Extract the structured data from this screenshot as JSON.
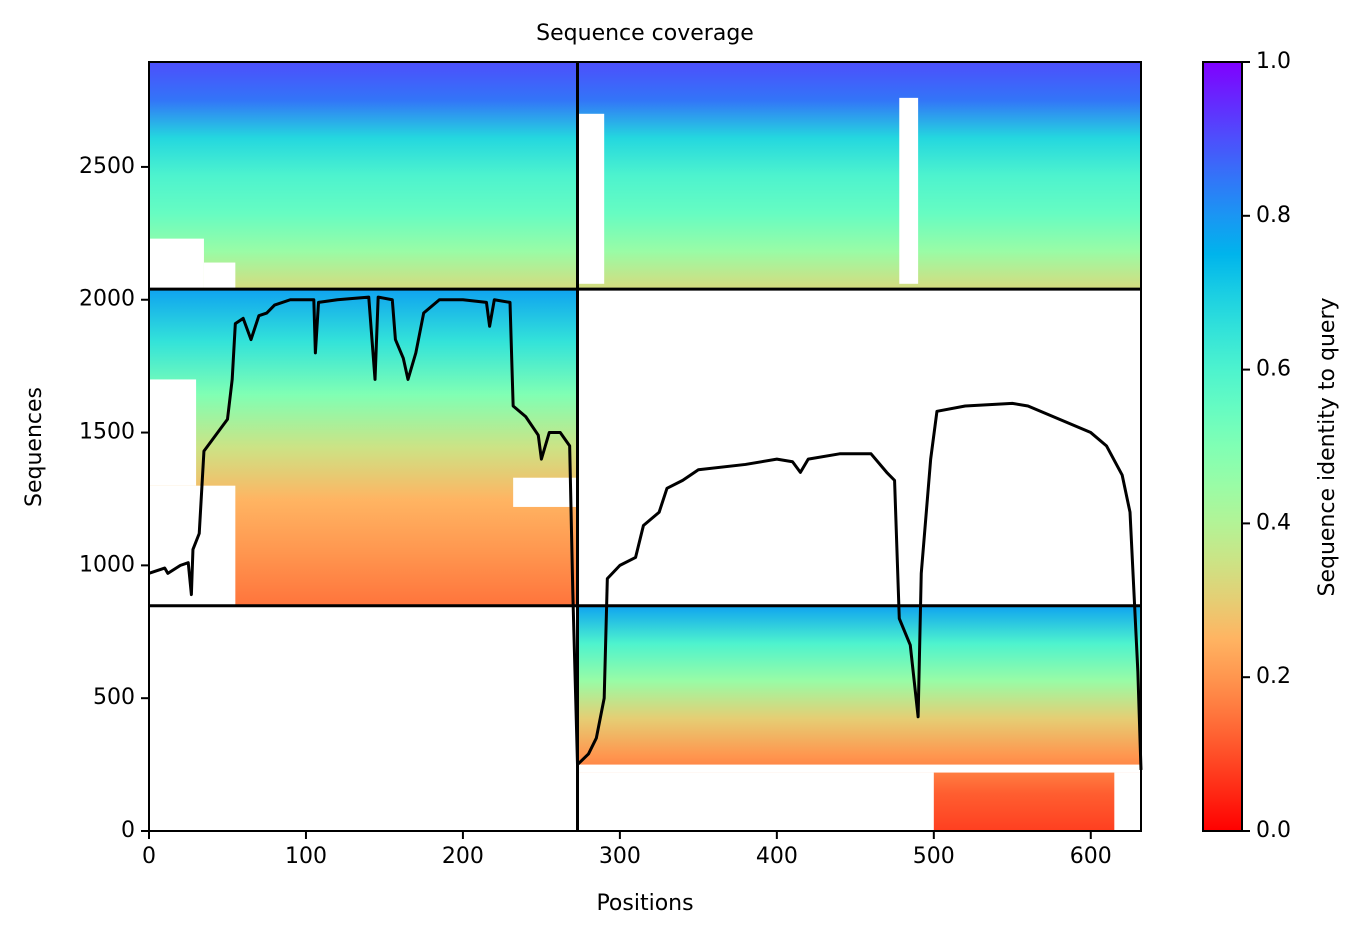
{
  "chart_data": {
    "type": "coverage",
    "title": "Sequence coverage",
    "xlabel": "Positions",
    "ylabel": "Sequences",
    "colorbar_label": "Sequence identity to query",
    "colormap": "rainbow_r",
    "xlim": [
      0,
      632
    ],
    "ylim": [
      0,
      2895
    ],
    "xticks": [
      0,
      100,
      200,
      300,
      400,
      500,
      600
    ],
    "yticks": [
      0,
      500,
      1000,
      1500,
      2000,
      2500
    ],
    "clim": [
      0,
      1
    ],
    "cticks": [
      0.0,
      0.2,
      0.4,
      0.6,
      0.8,
      1.0
    ],
    "blocks": [
      {
        "x": [
          0,
          632
        ],
        "y": [
          2040,
          2895
        ],
        "identity": [
          0.9,
          0.85,
          0.68,
          0.6,
          0.55,
          0.45,
          0.33
        ]
      },
      {
        "x": [
          0,
          273
        ],
        "y": [
          848,
          2040
        ],
        "identity": [
          0.78,
          0.65,
          0.5,
          0.35,
          0.25,
          0.2,
          0.15
        ]
      },
      {
        "x": [
          273,
          632
        ],
        "y": [
          0,
          848
        ],
        "identity": [
          0.78,
          0.6,
          0.45,
          0.3,
          0.2,
          0.12,
          0.08
        ]
      }
    ],
    "gaps": [
      {
        "x": [
          0,
          35
        ],
        "y": [
          2040,
          2230
        ]
      },
      {
        "x": [
          35,
          55
        ],
        "y": [
          2040,
          2140
        ]
      },
      {
        "x": [
          273,
          290
        ],
        "y": [
          2060,
          2700
        ]
      },
      {
        "x": [
          478,
          490
        ],
        "y": [
          2060,
          2760
        ]
      },
      {
        "x": [
          0,
          55
        ],
        "y": [
          848,
          1300
        ]
      },
      {
        "x": [
          0,
          30
        ],
        "y": [
          1300,
          1700
        ]
      },
      {
        "x": [
          232,
          273
        ],
        "y": [
          1220,
          1330
        ]
      },
      {
        "x": [
          273,
          500
        ],
        "y": [
          0,
          220
        ]
      },
      {
        "x": [
          273,
          632
        ],
        "y": [
          220,
          250
        ]
      },
      {
        "x": [
          615,
          632
        ],
        "y": [
          0,
          220
        ]
      }
    ],
    "chain_breaks": {
      "x": [
        273
      ],
      "y": [
        848,
        2040
      ]
    },
    "coverage": {
      "color": "#000000",
      "x": [
        0,
        10,
        12,
        20,
        25,
        27,
        28,
        32,
        35,
        40,
        45,
        50,
        53,
        55,
        60,
        65,
        70,
        75,
        80,
        90,
        105,
        106,
        108,
        120,
        140,
        144,
        146,
        155,
        157,
        162,
        165,
        170,
        175,
        185,
        200,
        215,
        217,
        220,
        230,
        232,
        240,
        248,
        250,
        255,
        262,
        268,
        270,
        273,
        280,
        285,
        290,
        292,
        300,
        310,
        315,
        325,
        330,
        340,
        350,
        380,
        400,
        410,
        415,
        420,
        440,
        460,
        470,
        475,
        478,
        485,
        490,
        492,
        498,
        502,
        520,
        550,
        560,
        580,
        600,
        610,
        620,
        625,
        630,
        632
      ],
      "values": [
        970,
        990,
        970,
        1000,
        1010,
        890,
        1060,
        1120,
        1430,
        1470,
        1510,
        1550,
        1700,
        1910,
        1930,
        1850,
        1940,
        1950,
        1980,
        2000,
        2000,
        1800,
        1990,
        2000,
        2010,
        1700,
        2010,
        2000,
        1850,
        1780,
        1700,
        1800,
        1950,
        2000,
        2000,
        1990,
        1900,
        2000,
        1990,
        1600,
        1560,
        1490,
        1400,
        1500,
        1500,
        1450,
        900,
        250,
        290,
        350,
        500,
        950,
        1000,
        1030,
        1150,
        1200,
        1290,
        1320,
        1360,
        1380,
        1400,
        1390,
        1350,
        1400,
        1420,
        1420,
        1350,
        1320,
        800,
        700,
        430,
        970,
        1400,
        1580,
        1600,
        1610,
        1600,
        1550,
        1500,
        1450,
        1340,
        1200,
        600,
        230
      ]
    }
  }
}
